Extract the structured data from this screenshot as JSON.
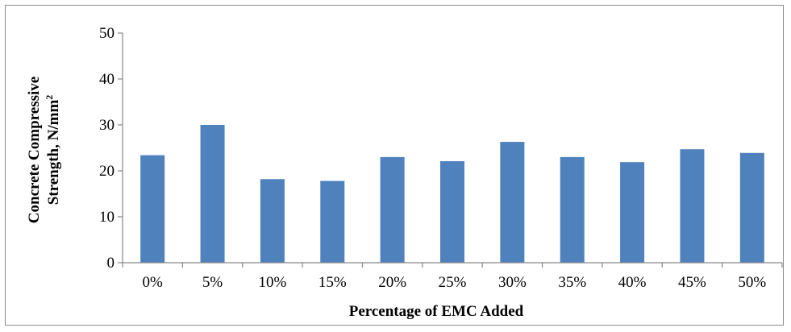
{
  "chart_data": {
    "type": "bar",
    "title": "",
    "xlabel": "Percentage of EMC Added",
    "ylabel_lines": [
      "Concrete Compressive",
      "Strength, N/mm"
    ],
    "ylabel_superscript": "2",
    "categories": [
      "0%",
      "5%",
      "10%",
      "15%",
      "20%",
      "25%",
      "30%",
      "35%",
      "40%",
      "45%",
      "50%"
    ],
    "values": [
      23.4,
      30.0,
      18.2,
      17.8,
      23.0,
      22.1,
      26.3,
      23.0,
      21.9,
      24.7,
      23.9
    ],
    "ylim": [
      0,
      50
    ],
    "yticks": [
      0,
      10,
      20,
      30,
      40,
      50
    ],
    "grid": false,
    "legend": "none",
    "colors": {
      "bar": "#4f81bd",
      "axis": "#868686"
    }
  }
}
